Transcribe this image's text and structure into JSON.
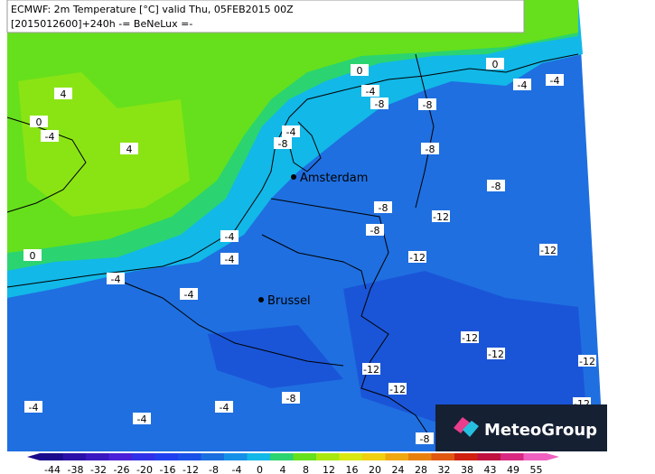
{
  "header": {
    "line1": "ECMWF: 2m Temperature [°C] valid Thu, 05FEB2015 00Z",
    "line2": "[2015012600]+240h -= BeNeLux =-"
  },
  "cities": [
    "Amsterdam",
    "Brussel"
  ],
  "contour_labels": [
    "0",
    "0",
    "0",
    "0",
    "4",
    "4",
    "-4",
    "-4",
    "-4",
    "-4",
    "-4",
    "-4",
    "-4",
    "-4",
    "-4",
    "-4",
    "-4",
    "-4",
    "-8",
    "-8",
    "-8",
    "-8",
    "-8",
    "-8",
    "-8",
    "-8",
    "-8",
    "-12",
    "-12",
    "-12",
    "-12",
    "-12",
    "-12",
    "-12",
    "-12",
    "-12"
  ],
  "colorbar": {
    "labels": [
      -44,
      -38,
      -32,
      -26,
      -20,
      -16,
      -12,
      -8,
      -4,
      0,
      4,
      8,
      12,
      16,
      20,
      24,
      28,
      32,
      38,
      43,
      49,
      55
    ]
  },
  "logo": "MeteoGroup"
}
